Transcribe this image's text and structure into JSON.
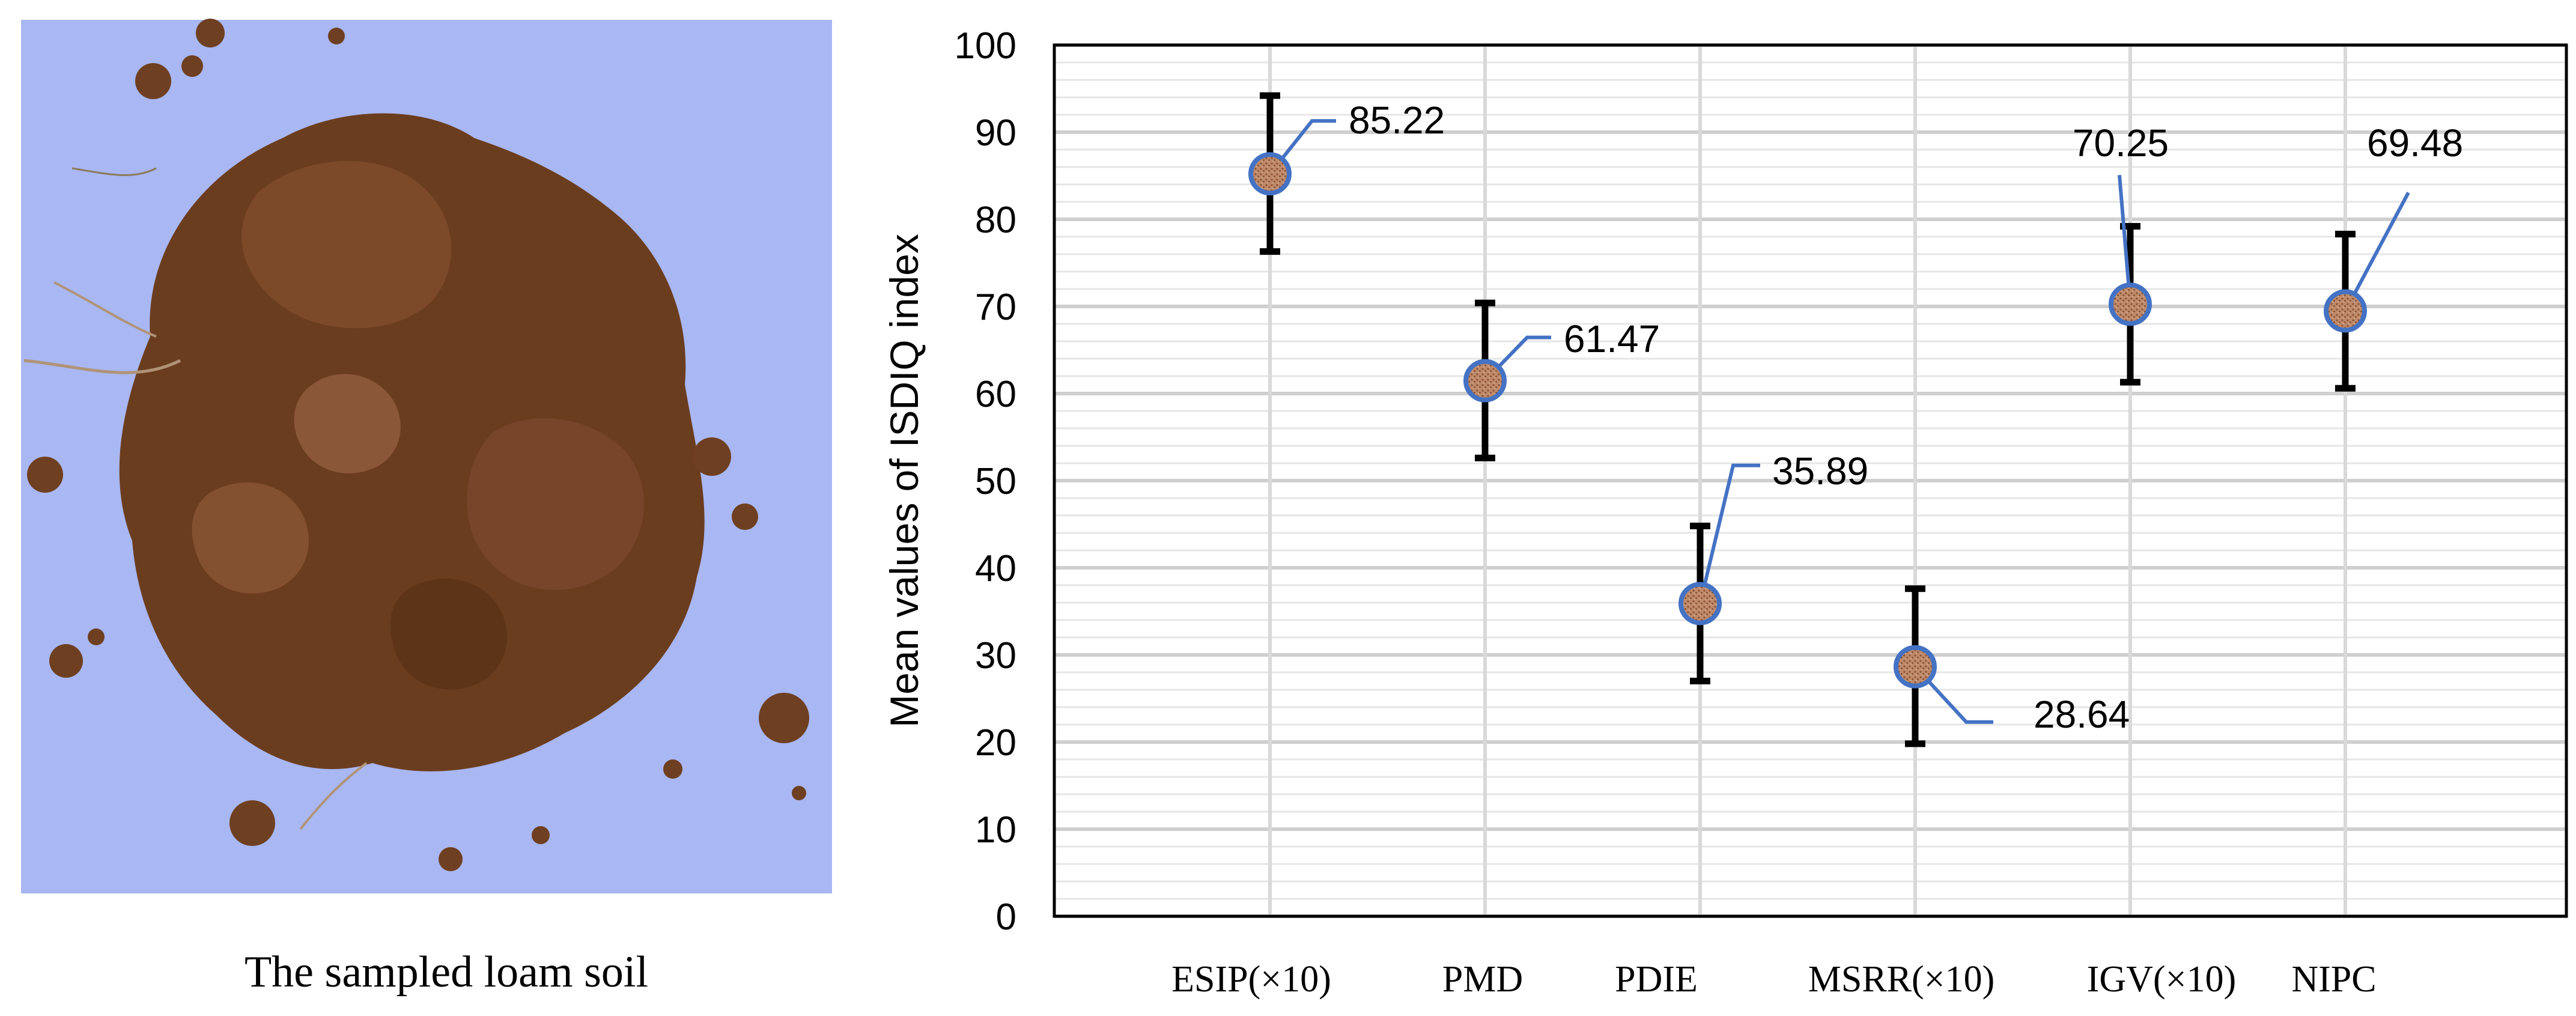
{
  "photo_panel": {
    "caption": "The sampled loam soil",
    "photo_name": "loam soil sample photograph",
    "background_color": "#a9b7f2",
    "soil_color": "#6b3d1f"
  },
  "chart_data": {
    "type": "scatter",
    "title": "",
    "xlabel": "",
    "ylabel": "Mean values of ISDIQ index",
    "ylim": [
      0,
      100
    ],
    "yticks": [
      0,
      10,
      20,
      30,
      40,
      50,
      60,
      70,
      80,
      90,
      100
    ],
    "grid": true,
    "legend": "none",
    "categories": [
      "ESIP(×10)",
      "PMD",
      "PDIE",
      "MSRR(×10)",
      "IGV(×10)",
      "NIPC"
    ],
    "values": [
      85.22,
      61.47,
      35.89,
      28.64,
      70.25,
      69.48
    ],
    "error_low": [
      76.3,
      52.6,
      27.0,
      19.8,
      61.3,
      60.6
    ],
    "error_high": [
      94.2,
      70.4,
      44.8,
      37.6,
      79.2,
      78.3
    ],
    "data_labels": [
      "85.22",
      "61.47",
      "35.89",
      "28.64",
      "70.25",
      "69.48"
    ],
    "colors": {
      "marker_fill": "#b07a5c",
      "marker_edge": "#4472c4",
      "leader_line": "#4472c4",
      "error_bar": "#000000",
      "grid": "#d9d9d9"
    }
  }
}
